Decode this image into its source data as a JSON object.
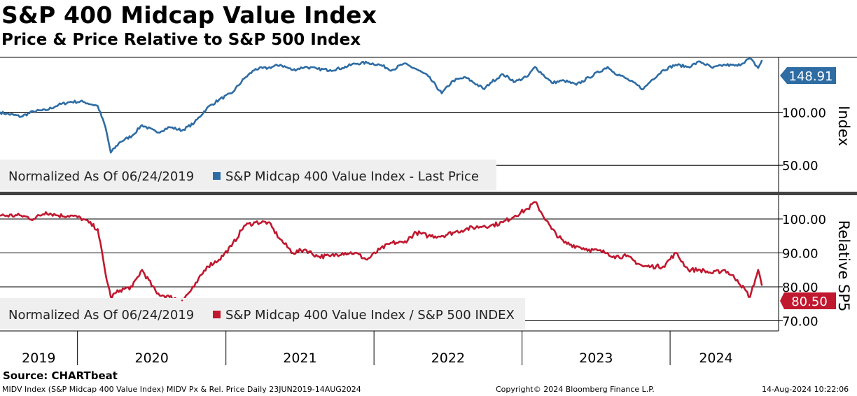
{
  "title": "S&P 400 Midcap Value Index",
  "subtitle": "Price & Price Relative to S&P 500 Index",
  "source": "Source: CHARTbeat",
  "footer": {
    "left": "MIDV Index (S&P Midcap 400 Value Index) MIDV Px & Rel. Price  Daily 23JUN2019-14AUG2024",
    "center": "Copyright© 2024 Bloomberg Finance L.P.",
    "right": "14-Aug-2024 10:22:06"
  },
  "colors": {
    "price": "#2e6ca4",
    "relative": "#c0182f",
    "legend_bg": "#efefef"
  },
  "chart_data": [
    {
      "type": "line",
      "panel": "top",
      "ylabel": "Index",
      "legend": {
        "prefix": "Normalized As Of 06/24/2019",
        "series": "S&P Midcap 400 Value Index - Last Price"
      },
      "yticks": [
        "50.00",
        "100.00"
      ],
      "ylim": [
        25,
        152
      ],
      "grid": true,
      "last_value_label": "148.91",
      "series": [
        {
          "name": "S&P Midcap 400 Value Index - Last Price",
          "x": [
            "2019-06-24",
            "2019-08-15",
            "2019-09-15",
            "2019-10-15",
            "2019-11-15",
            "2019-12-15",
            "2020-01-15",
            "2020-02-20",
            "2020-03-10",
            "2020-03-23",
            "2020-04-15",
            "2020-05-15",
            "2020-06-08",
            "2020-07-15",
            "2020-08-15",
            "2020-09-15",
            "2020-10-15",
            "2020-11-15",
            "2020-12-15",
            "2021-01-15",
            "2021-02-15",
            "2021-03-15",
            "2021-04-15",
            "2021-05-15",
            "2021-06-15",
            "2021-07-15",
            "2021-08-15",
            "2021-09-15",
            "2021-10-15",
            "2021-11-15",
            "2021-12-15",
            "2022-01-15",
            "2022-02-15",
            "2022-03-15",
            "2022-04-15",
            "2022-05-15",
            "2022-06-17",
            "2022-07-15",
            "2022-08-15",
            "2022-09-30",
            "2022-10-15",
            "2022-11-15",
            "2022-12-15",
            "2023-01-15",
            "2023-02-02",
            "2023-03-15",
            "2023-04-15",
            "2023-05-15",
            "2023-06-15",
            "2023-07-31",
            "2023-08-15",
            "2023-09-15",
            "2023-10-27",
            "2023-11-15",
            "2023-12-15",
            "2024-01-15",
            "2024-02-15",
            "2024-03-15",
            "2024-04-15",
            "2024-05-15",
            "2024-06-15",
            "2024-07-16",
            "2024-08-05",
            "2024-08-14"
          ],
          "values": [
            100,
            96,
            101,
            102,
            107,
            110,
            110,
            106,
            86,
            62,
            72,
            78,
            88,
            81,
            86,
            83,
            90,
            104,
            112,
            118,
            132,
            141,
            142,
            145,
            140,
            143,
            141,
            140,
            142,
            146,
            147,
            145,
            140,
            146,
            141,
            134,
            118,
            130,
            133,
            122,
            128,
            136,
            129,
            134,
            143,
            128,
            130,
            126,
            133,
            143,
            138,
            132,
            122,
            130,
            140,
            145,
            143,
            148,
            142,
            145,
            144,
            151,
            142,
            148.91
          ]
        }
      ]
    },
    {
      "type": "line",
      "panel": "bottom",
      "ylabel": "Relative SP5",
      "legend": {
        "prefix": "Normalized As Of 06/24/2019",
        "series": "S&P Midcap 400 Value Index / S&P 500 INDEX"
      },
      "yticks": [
        "70.00",
        "80.00",
        "90.00",
        "100.00"
      ],
      "ylim": [
        67,
        107
      ],
      "grid": true,
      "last_value_label": "80.50",
      "series": [
        {
          "name": "S&P Midcap 400 Value Index / S&P 500 INDEX",
          "x": [
            "2019-06-24",
            "2019-08-15",
            "2019-09-15",
            "2019-10-15",
            "2019-11-15",
            "2019-12-15",
            "2020-01-15",
            "2020-02-20",
            "2020-03-10",
            "2020-03-23",
            "2020-04-15",
            "2020-05-15",
            "2020-06-08",
            "2020-07-15",
            "2020-08-15",
            "2020-09-15",
            "2020-10-15",
            "2020-11-15",
            "2020-12-15",
            "2021-01-15",
            "2021-02-15",
            "2021-03-15",
            "2021-04-15",
            "2021-05-15",
            "2021-06-15",
            "2021-07-15",
            "2021-08-15",
            "2021-09-15",
            "2021-10-15",
            "2021-11-15",
            "2021-12-15",
            "2022-01-15",
            "2022-02-15",
            "2022-03-15",
            "2022-04-15",
            "2022-05-15",
            "2022-06-17",
            "2022-07-15",
            "2022-08-15",
            "2022-09-30",
            "2022-10-15",
            "2022-11-15",
            "2022-12-15",
            "2023-01-15",
            "2023-02-02",
            "2023-03-15",
            "2023-04-15",
            "2023-05-15",
            "2023-06-15",
            "2023-07-31",
            "2023-08-15",
            "2023-09-15",
            "2023-10-27",
            "2023-11-15",
            "2023-12-15",
            "2024-01-15",
            "2024-02-15",
            "2024-03-15",
            "2024-04-15",
            "2024-05-15",
            "2024-06-15",
            "2024-07-16",
            "2024-08-05",
            "2024-08-14"
          ],
          "values": [
            101,
            101,
            100,
            102,
            101,
            101,
            100,
            97,
            84,
            77,
            79,
            80,
            85,
            78,
            77,
            76,
            80,
            86,
            88,
            92,
            98,
            99,
            99,
            94,
            90,
            91,
            89,
            89,
            90,
            90,
            88,
            91,
            93,
            93,
            96,
            95,
            95,
            96,
            97,
            98,
            98,
            99,
            101,
            103,
            105,
            97,
            93,
            92,
            91,
            90,
            89,
            89,
            86,
            86,
            86,
            90,
            85,
            85,
            84,
            85,
            82,
            77,
            85,
            80.5
          ]
        }
      ]
    }
  ],
  "x_axis": {
    "years": [
      "2019",
      "2020",
      "2021",
      "2022",
      "2023",
      "2024"
    ]
  }
}
